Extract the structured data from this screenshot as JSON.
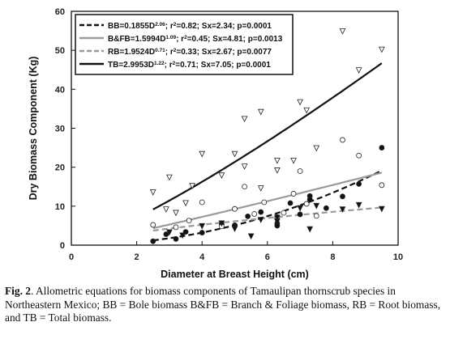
{
  "caption": {
    "label": "Fig. 2",
    "text": ". Allometric equations for biomass components of Tamaulipan thornscrub species in Northeastern Mexico; BB = Bole biomass B&FB = Branch & Foliage biomass, RB = Root biomass, and TB = Total biomass."
  },
  "chart_data": {
    "type": "scatter",
    "title": "",
    "xlabel": "Diameter at Breast Height (cm)",
    "ylabel": "Dry Biomass Component (Kg)",
    "xlim": [
      0,
      10
    ],
    "ylim": [
      0,
      60
    ],
    "xticks": [
      0,
      2,
      4,
      6,
      8,
      10
    ],
    "yticks": [
      0,
      10,
      20,
      30,
      40,
      50,
      60
    ],
    "grid": false,
    "legend_position": "top-left",
    "series": [
      {
        "key": "BB",
        "marker": "filled-circle",
        "line_color": "#111111",
        "line_dash": "7 4",
        "marker_fill": "#111111",
        "legend": {
          "prefix": "BB=0.1855D",
          "exp": "2.06",
          "mid": "; r",
          "sup2": "2",
          "suffix": "=0.82; Sx=2.34; p=0.0001"
        },
        "fit": {
          "a": 0.1855,
          "b": 2.06
        },
        "points": [
          [
            2.5,
            1.0
          ],
          [
            2.9,
            2.8
          ],
          [
            3.2,
            1.6
          ],
          [
            3.5,
            3.4
          ],
          [
            4.0,
            3.2
          ],
          [
            4.6,
            5.4
          ],
          [
            5.0,
            5.1
          ],
          [
            5.4,
            7.4
          ],
          [
            5.8,
            8.5
          ],
          [
            6.3,
            5.6
          ],
          [
            6.3,
            5.0
          ],
          [
            6.7,
            10.8
          ],
          [
            7.0,
            7.9
          ],
          [
            7.3,
            12.6
          ],
          [
            7.3,
            11.7
          ],
          [
            7.8,
            9.5
          ],
          [
            8.3,
            12.5
          ],
          [
            8.8,
            15.7
          ],
          [
            9.5,
            25.0
          ]
        ]
      },
      {
        "key": "B&FB",
        "marker": "open-circle",
        "line_color": "#9a9a9a",
        "line_dash": "",
        "marker_fill": "#ffffff",
        "legend": {
          "prefix": "B&FB=1.5994D",
          "exp": "1.09",
          "mid": "; r",
          "sup2": "2",
          "suffix": "=0.45; Sx=4.81; p=0.0013"
        },
        "fit": {
          "a": 1.5994,
          "b": 1.09
        },
        "points": [
          [
            2.5,
            5.2
          ],
          [
            3.2,
            4.6
          ],
          [
            3.6,
            6.3
          ],
          [
            4.0,
            11.0
          ],
          [
            4.6,
            4.8
          ],
          [
            5.0,
            9.3
          ],
          [
            5.3,
            15.0
          ],
          [
            5.6,
            8.0
          ],
          [
            5.9,
            11.0
          ],
          [
            6.3,
            7.2
          ],
          [
            6.5,
            8.3
          ],
          [
            6.8,
            13.2
          ],
          [
            7.0,
            19.0
          ],
          [
            7.2,
            10.6
          ],
          [
            7.5,
            7.5
          ],
          [
            8.3,
            27.0
          ],
          [
            8.8,
            23.0
          ],
          [
            9.5,
            15.4
          ]
        ]
      },
      {
        "key": "RB",
        "marker": "filled-triangle-down",
        "line_color": "#9a9a9a",
        "line_dash": "7 4",
        "marker_fill": "#111111",
        "legend": {
          "prefix": "RB=1.9524D",
          "exp": "0.71",
          "mid": "; r",
          "sup2": "2",
          "suffix": "=0.33; Sx=2.67; p=0.0077"
        },
        "fit": {
          "a": 1.9524,
          "b": 0.71
        },
        "points": [
          [
            3.0,
            3.4
          ],
          [
            3.4,
            2.6
          ],
          [
            4.0,
            5.0
          ],
          [
            4.6,
            5.7
          ],
          [
            5.0,
            4.3
          ],
          [
            5.5,
            2.4
          ],
          [
            5.8,
            6.6
          ],
          [
            6.3,
            6.2
          ],
          [
            6.3,
            7.2
          ],
          [
            7.0,
            9.6
          ],
          [
            7.3,
            4.2
          ],
          [
            7.5,
            10.2
          ],
          [
            8.3,
            9.3
          ],
          [
            8.8,
            10.4
          ],
          [
            9.5,
            9.4
          ]
        ]
      },
      {
        "key": "TB",
        "marker": "open-triangle-down",
        "line_color": "#111111",
        "line_dash": "",
        "marker_fill": "#ffffff",
        "legend": {
          "prefix": "TB=2.9953D",
          "exp": "1.22",
          "mid": "; r",
          "sup2": "2",
          "suffix": "=0.71; Sx=7.05; p=0.0001"
        },
        "fit": {
          "a": 2.9953,
          "b": 1.22
        },
        "points": [
          [
            2.5,
            13.7
          ],
          [
            2.9,
            9.3
          ],
          [
            3.0,
            17.5
          ],
          [
            3.2,
            8.4
          ],
          [
            3.5,
            10.9
          ],
          [
            3.7,
            15.3
          ],
          [
            4.0,
            23.5
          ],
          [
            4.6,
            18.0
          ],
          [
            5.0,
            23.5
          ],
          [
            5.3,
            20.3
          ],
          [
            5.3,
            32.5
          ],
          [
            5.8,
            14.7
          ],
          [
            5.8,
            34.3
          ],
          [
            6.3,
            21.8
          ],
          [
            6.3,
            19.3
          ],
          [
            6.8,
            21.8
          ],
          [
            7.0,
            36.8
          ],
          [
            7.2,
            34.7
          ],
          [
            7.5,
            25.0
          ],
          [
            8.3,
            55.0
          ],
          [
            8.8,
            45.0
          ],
          [
            9.5,
            50.3
          ]
        ]
      }
    ]
  }
}
